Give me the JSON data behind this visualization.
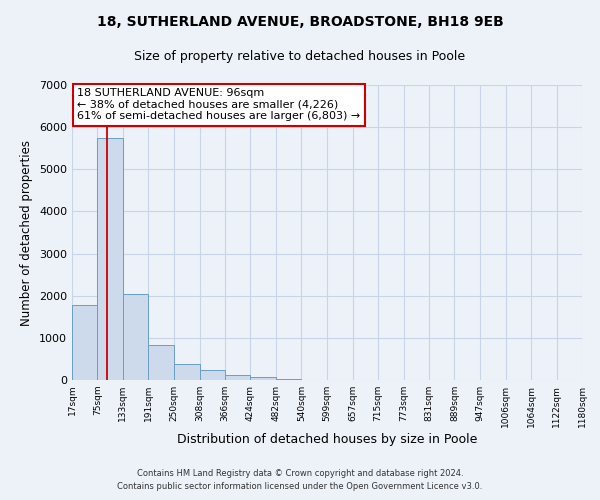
{
  "title1": "18, SUTHERLAND AVENUE, BROADSTONE, BH18 9EB",
  "title2": "Size of property relative to detached houses in Poole",
  "xlabel": "Distribution of detached houses by size in Poole",
  "ylabel": "Number of detached properties",
  "bin_labels": [
    "17sqm",
    "75sqm",
    "133sqm",
    "191sqm",
    "250sqm",
    "308sqm",
    "366sqm",
    "424sqm",
    "482sqm",
    "540sqm",
    "599sqm",
    "657sqm",
    "715sqm",
    "773sqm",
    "831sqm",
    "889sqm",
    "947sqm",
    "1006sqm",
    "1064sqm",
    "1122sqm",
    "1180sqm"
  ],
  "bar_values": [
    1780,
    5750,
    2050,
    820,
    370,
    230,
    110,
    60,
    30,
    10,
    5,
    0,
    0,
    0,
    0,
    0,
    0,
    0,
    0,
    0
  ],
  "bar_color": "#ccdaeb",
  "bar_edge_color": "#6a9ec5",
  "property_line_x": 96,
  "bin_edges": [
    17,
    75,
    133,
    191,
    250,
    308,
    366,
    424,
    482,
    540,
    599,
    657,
    715,
    773,
    831,
    889,
    947,
    1006,
    1064,
    1122,
    1180
  ],
  "annotation_line1": "18 SUTHERLAND AVENUE: 96sqm",
  "annotation_line2": "← 38% of detached houses are smaller (4,226)",
  "annotation_line3": "61% of semi-detached houses are larger (6,803) →",
  "annotation_box_color": "#ffffff",
  "annotation_box_edge": "#cc0000",
  "red_line_color": "#cc0000",
  "ylim": [
    0,
    7000
  ],
  "yticks": [
    0,
    1000,
    2000,
    3000,
    4000,
    5000,
    6000,
    7000
  ],
  "footer1": "Contains HM Land Registry data © Crown copyright and database right 2024.",
  "footer2": "Contains public sector information licensed under the Open Government Licence v3.0.",
  "grid_color": "#c8d4e8",
  "bg_color": "#edf2f9"
}
